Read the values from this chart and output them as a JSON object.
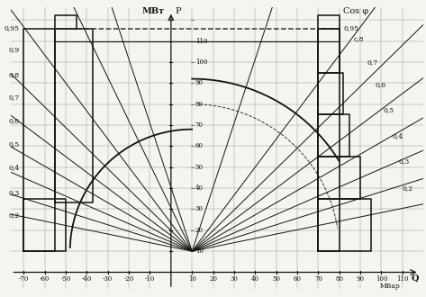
{
  "title_p": "МВт",
  "label_p": "P",
  "label_q": "Q",
  "label_mvar": "МВар",
  "label_cosfi": "Cos φ",
  "background_color": "#f5f5f0",
  "grid_color": "#999999",
  "line_color": "#111111",
  "dashed_color": "#333333",
  "figsize": [
    4.73,
    3.3
  ],
  "dpi": 100,
  "xlim": [
    -76,
    120
  ],
  "ylim": [
    -8,
    126
  ],
  "P_max": 110,
  "P_dashed": 116,
  "fan_origin_x": 10,
  "fan_origin_y": 10,
  "S_rated": 75,
  "cos_phi_right": [
    0.95,
    0.8,
    0.7,
    0.6,
    0.5,
    0.4,
    0.3,
    0.2
  ],
  "cos_phi_left": [
    0.95,
    0.9,
    0.8,
    0.7,
    0.6,
    0.5,
    0.4,
    0.3,
    0.2
  ],
  "x_ticks_left": [
    -70,
    -60,
    -50,
    -40,
    -30,
    -20,
    -10
  ],
  "x_ticks_right": [
    10,
    20,
    30,
    40,
    50,
    60,
    70,
    80,
    90,
    100,
    110
  ],
  "y_ticks": [
    10,
    20,
    30,
    40,
    50,
    60,
    70,
    80,
    90,
    100,
    110
  ],
  "left_steps": [
    {
      "xmin": -70,
      "xmax": -55,
      "ymin": 10,
      "ymax": 25
    },
    {
      "xmin": -70,
      "xmax": -50,
      "ymin": 25,
      "ymax": 35
    },
    {
      "xmin": -70,
      "xmax": -45,
      "ymin": 35,
      "ymax": 44
    },
    {
      "xmin": -70,
      "xmax": -40,
      "ymin": 44,
      "ymax": 55
    },
    {
      "xmin": -70,
      "xmax": -38,
      "ymin": 55,
      "ymax": 66
    },
    {
      "xmin": -70,
      "xmax": -37,
      "ymin": 66,
      "ymax": 77
    },
    {
      "xmin": -70,
      "xmax": -37,
      "ymin": 77,
      "ymax": 88
    },
    {
      "xmin": -70,
      "xmax": -40,
      "ymin": 88,
      "ymax": 99
    },
    {
      "xmin": -70,
      "xmax": -45,
      "ymin": 99,
      "ymax": 110
    },
    {
      "xmin": -70,
      "xmax": -50,
      "ymin": 110,
      "ymax": 116
    }
  ],
  "right_steps": [
    {
      "xmin": 70,
      "xmax": 80,
      "ymin": 10,
      "ymax": 20
    },
    {
      "xmin": 70,
      "xmax": 85,
      "ymin": 20,
      "ymax": 30
    },
    {
      "xmin": 70,
      "xmax": 90,
      "ymin": 30,
      "ymax": 40
    },
    {
      "xmin": 70,
      "xmax": 93,
      "ymin": 40,
      "ymax": 50
    },
    {
      "xmin": 70,
      "xmax": 95,
      "ymin": 50,
      "ymax": 60
    },
    {
      "xmin": 70,
      "xmax": 95,
      "ymin": 60,
      "ymax": 70
    },
    {
      "xmin": 70,
      "xmax": 93,
      "ymin": 70,
      "ymax": 80
    },
    {
      "xmin": 70,
      "xmax": 90,
      "ymin": 80,
      "ymax": 90
    },
    {
      "xmin": 70,
      "xmax": 85,
      "ymin": 90,
      "ymax": 100
    },
    {
      "xmin": 70,
      "xmax": 80,
      "ymin": 100,
      "ymax": 110
    },
    {
      "xmin": 70,
      "xmax": 75,
      "ymin": 110,
      "ymax": 116
    }
  ],
  "left_cosfi_labels": [
    [
      "0,95",
      116
    ],
    [
      "0,9",
      106
    ],
    [
      "0,8",
      94
    ],
    [
      "0,7",
      83
    ],
    [
      "0,6",
      72
    ],
    [
      "0,5",
      61
    ],
    [
      "0,4",
      50
    ],
    [
      "0,3",
      38
    ],
    [
      "0,2",
      27
    ]
  ],
  "right_cosfi_labels": [
    [
      "0,95",
      116
    ],
    [
      "c,8",
      111
    ],
    [
      "0,7",
      100
    ],
    [
      "0,6",
      89
    ],
    [
      "0,5",
      77
    ],
    [
      "0,4",
      65
    ],
    [
      "0,3",
      53
    ],
    [
      "0,2",
      40
    ]
  ]
}
